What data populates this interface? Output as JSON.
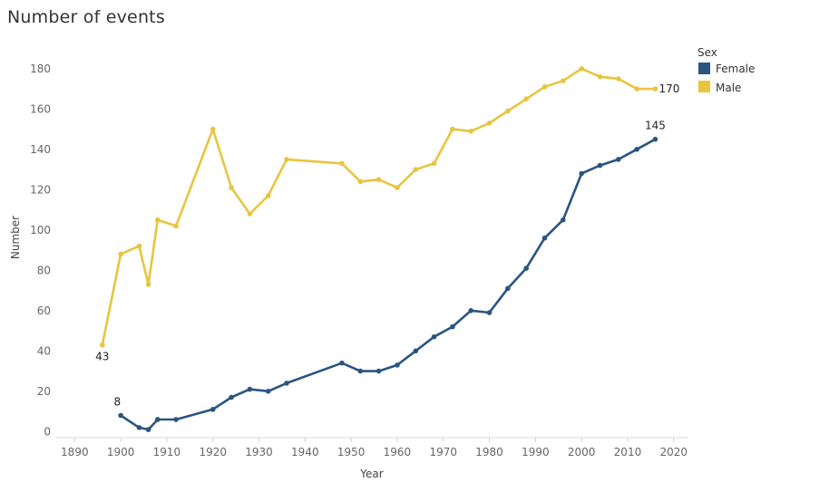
{
  "chart_data": {
    "type": "line",
    "title": "Number of events",
    "xlabel": "Year",
    "ylabel": "Number",
    "xlim": [
      1886,
      2023
    ],
    "ylim": [
      -3,
      188
    ],
    "x_ticks": [
      1890,
      1900,
      1910,
      1920,
      1930,
      1940,
      1950,
      1960,
      1970,
      1980,
      1990,
      2000,
      2010,
      2020
    ],
    "y_ticks": [
      0,
      20,
      40,
      60,
      80,
      100,
      120,
      140,
      160,
      180
    ],
    "grid": false,
    "legend": {
      "title": "Sex",
      "position": "top-right",
      "entries": [
        "Female",
        "Male"
      ]
    },
    "series": [
      {
        "name": "Female",
        "color": "#2b5580",
        "x": [
          1900,
          1904,
          1906,
          1908,
          1912,
          1920,
          1924,
          1928,
          1932,
          1936,
          1948,
          1952,
          1956,
          1960,
          1964,
          1968,
          1972,
          1976,
          1980,
          1984,
          1988,
          1992,
          1996,
          2000,
          2004,
          2008,
          2012,
          2016
        ],
        "values": [
          8,
          2,
          1,
          6,
          6,
          11,
          17,
          21,
          20,
          24,
          34,
          30,
          30,
          33,
          40,
          47,
          52,
          60,
          59,
          71,
          81,
          96,
          105,
          128,
          132,
          135,
          140,
          145
        ],
        "end_labels": {
          "first": "8",
          "last": "145"
        }
      },
      {
        "name": "Male",
        "color": "#e8c53f",
        "x": [
          1896,
          1900,
          1904,
          1906,
          1908,
          1912,
          1920,
          1924,
          1928,
          1932,
          1936,
          1948,
          1952,
          1956,
          1960,
          1964,
          1968,
          1972,
          1976,
          1980,
          1984,
          1988,
          1992,
          1996,
          2000,
          2004,
          2008,
          2012,
          2016
        ],
        "values": [
          43,
          88,
          92,
          73,
          105,
          102,
          150,
          121,
          108,
          117,
          135,
          133,
          124,
          125,
          121,
          130,
          133,
          150,
          149,
          153,
          159,
          165,
          171,
          174,
          180,
          176,
          175,
          170,
          170
        ],
        "end_labels": {
          "first": "43",
          "last": "170"
        }
      }
    ]
  }
}
